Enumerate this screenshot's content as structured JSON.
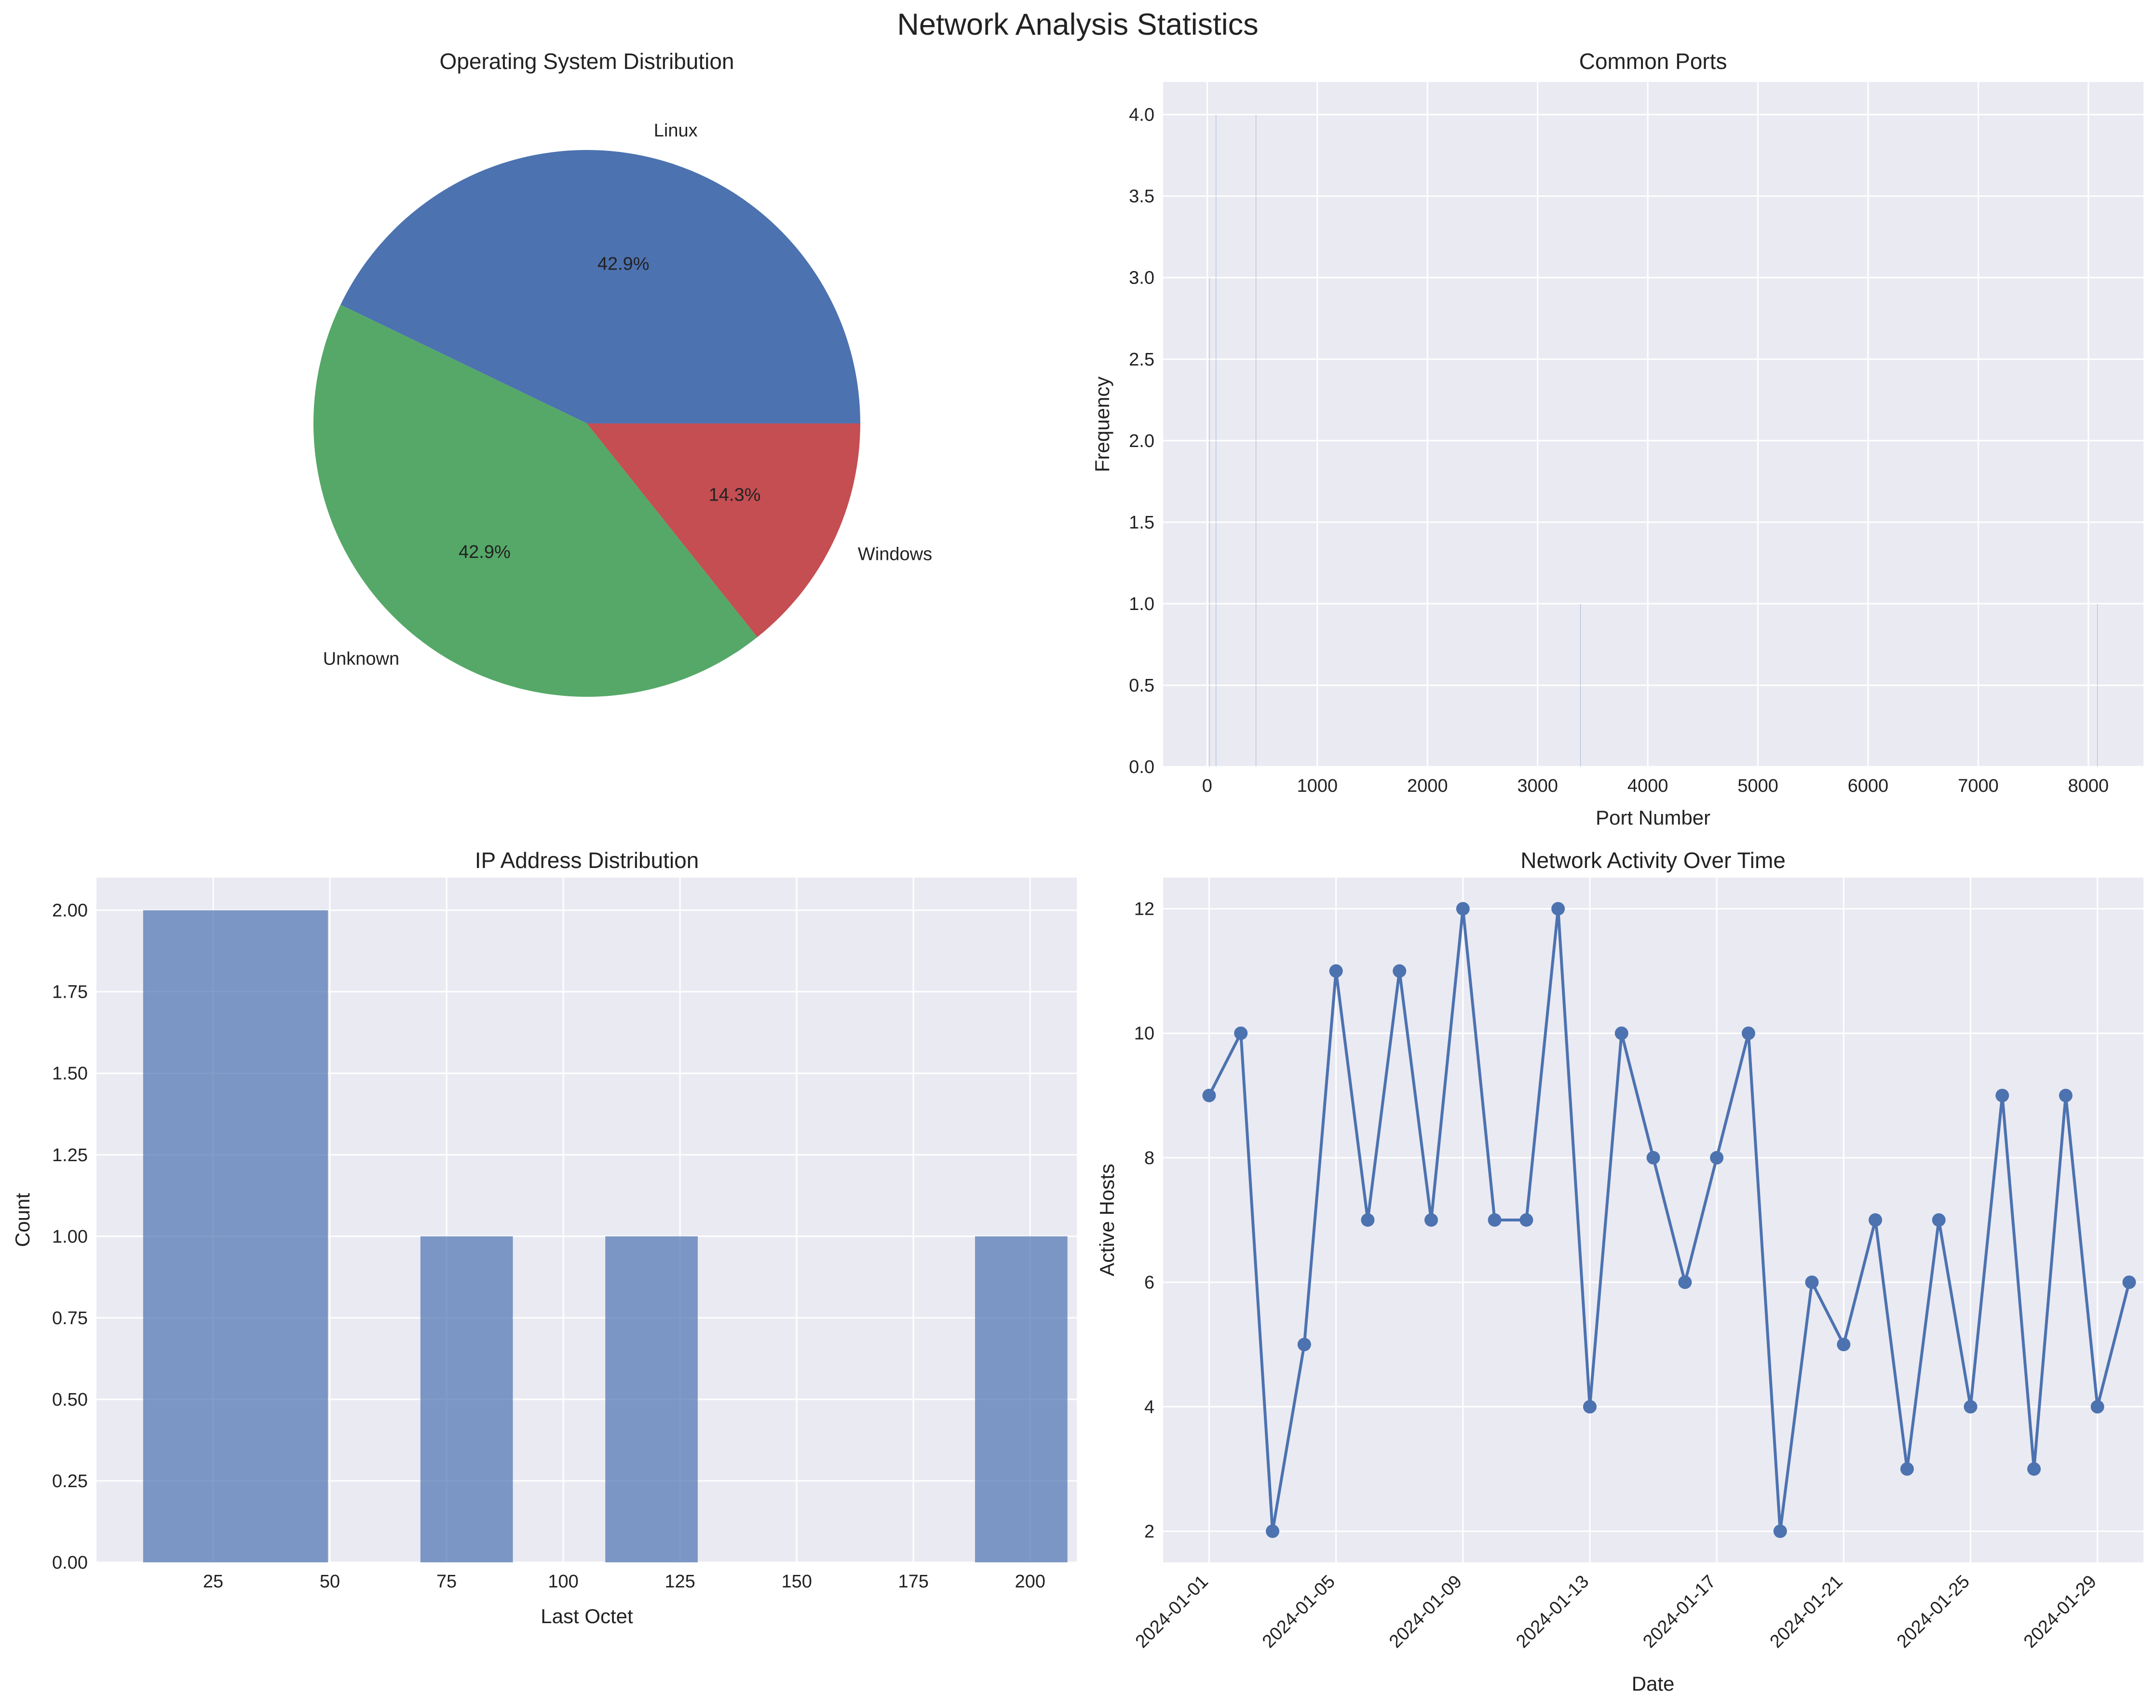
{
  "figure": {
    "title": "Network Analysis Statistics",
    "background": "#ffffff",
    "axes_background": "#eaeaf2",
    "grid_color": "#ffffff"
  },
  "chart_data": [
    {
      "type": "pie",
      "title": "Operating System Distribution",
      "labels": [
        "Linux",
        "Unknown",
        "Windows"
      ],
      "values": [
        3,
        3,
        1
      ],
      "percent_labels": [
        "42.9%",
        "42.9%",
        "14.3%"
      ],
      "colors": [
        "#4c72b0",
        "#55a868",
        "#c44e52"
      ],
      "startangle": 0
    },
    {
      "type": "bar",
      "title": "Common Ports",
      "xlabel": "Port Number",
      "ylabel": "Frequency",
      "xlim": [
        -400,
        8500
      ],
      "ylim": [
        0,
        4.2
      ],
      "xticks": [
        0,
        1000,
        2000,
        3000,
        4000,
        5000,
        6000,
        7000,
        8000
      ],
      "xtick_labels": [
        "0",
        "1000",
        "2000",
        "3000",
        "4000",
        "5000",
        "6000",
        "7000",
        "8000"
      ],
      "yticks": [
        0,
        0.5,
        1,
        1.5,
        2,
        2.5,
        3,
        3.5,
        4
      ],
      "ytick_labels": [
        "0.0",
        "0.5",
        "1.0",
        "1.5",
        "2.0",
        "2.5",
        "3.0",
        "3.5",
        "4.0"
      ],
      "bars": [
        {
          "port": 22,
          "count": 3
        },
        {
          "port": 80,
          "count": 4
        },
        {
          "port": 443,
          "count": 4
        },
        {
          "port": 3389,
          "count": 1
        },
        {
          "port": 8080,
          "count": 1
        }
      ],
      "bar_width": 0.8,
      "color": "#4c72b0"
    },
    {
      "type": "bar",
      "title": "IP Address Distribution",
      "xlabel": "Last Octet",
      "ylabel": "Count",
      "xlim": [
        0,
        210
      ],
      "ylim": [
        0,
        2.1
      ],
      "xticks": [
        25,
        50,
        75,
        100,
        125,
        150,
        175,
        200
      ],
      "xtick_labels": [
        "25",
        "50",
        "75",
        "100",
        "125",
        "150",
        "175",
        "200"
      ],
      "yticks": [
        0,
        0.25,
        0.5,
        0.75,
        1,
        1.25,
        1.5,
        1.75,
        2
      ],
      "ytick_labels": [
        "0.00",
        "0.25",
        "0.50",
        "0.75",
        "1.00",
        "1.25",
        "1.50",
        "1.75",
        "2.00"
      ],
      "bars": [
        {
          "x0": 10,
          "x1": 49.6,
          "count": 2
        },
        {
          "x0": 69.4,
          "x1": 89.2,
          "count": 1
        },
        {
          "x0": 109,
          "x1": 128.8,
          "count": 1
        },
        {
          "x0": 188.2,
          "x1": 208,
          "count": 1
        }
      ],
      "color": "#4c72b0",
      "alpha": 0.7
    },
    {
      "type": "line",
      "title": "Network Activity Over Time",
      "xlabel": "Date",
      "ylabel": "Active Hosts",
      "x_start": "2024-01-01",
      "x": [
        1,
        2,
        3,
        4,
        5,
        6,
        7,
        8,
        9,
        10,
        11,
        12,
        13,
        14,
        15,
        16,
        17,
        18,
        19,
        20,
        21,
        22,
        23,
        24,
        25,
        26,
        27,
        28,
        29,
        30
      ],
      "values": [
        9,
        10,
        2,
        5,
        11,
        7,
        11,
        7,
        12,
        7,
        7,
        12,
        4,
        10,
        8,
        6,
        8,
        10,
        2,
        6,
        5,
        7,
        3,
        7,
        4,
        9,
        3,
        9,
        4,
        6
      ],
      "xlim": [
        -0.45,
        30.45
      ],
      "ylim": [
        1.5,
        12.5
      ],
      "xticks": [
        1,
        5,
        9,
        13,
        17,
        21,
        25,
        29
      ],
      "xtick_labels": [
        "2024-01-01",
        "2024-01-05",
        "2024-01-09",
        "2024-01-13",
        "2024-01-17",
        "2024-01-21",
        "2024-01-25",
        "2024-01-29"
      ],
      "yticks": [
        2,
        4,
        6,
        8,
        10,
        12
      ],
      "ytick_labels": [
        "2",
        "4",
        "6",
        "8",
        "10",
        "12"
      ],
      "color": "#4c72b0",
      "marker": "o"
    }
  ]
}
